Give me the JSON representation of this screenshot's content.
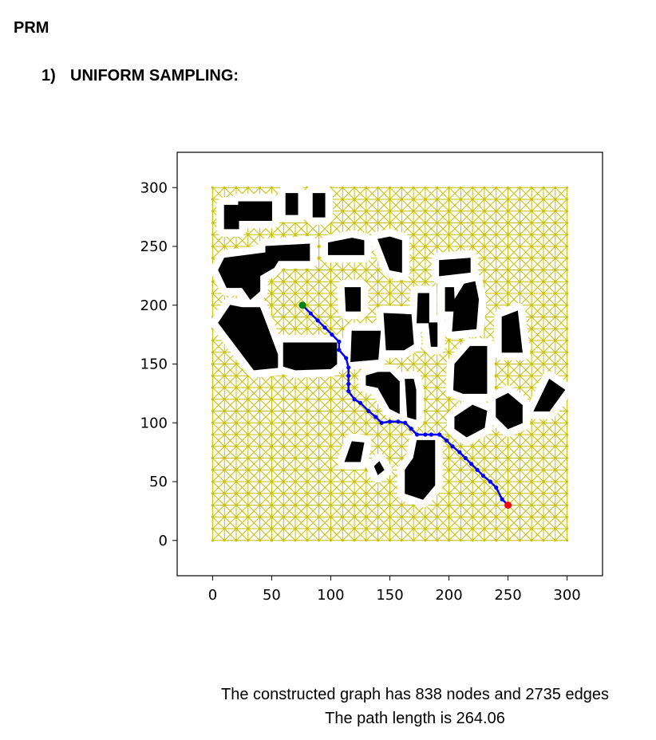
{
  "heading": "PRM",
  "section": {
    "number": "1)",
    "title": "UNIFORM SAMPLING:"
  },
  "chart_data": {
    "type": "scatter",
    "title": "",
    "xlabel": "",
    "ylabel": "",
    "xlim": [
      -30,
      330
    ],
    "ylim": [
      330,
      -30
    ],
    "y_inverted": true,
    "grid": false,
    "xticks": [
      0,
      50,
      100,
      150,
      200,
      250,
      300
    ],
    "yticks": [
      0,
      50,
      100,
      150,
      200,
      250,
      300
    ],
    "sample_grid": {
      "extent": [
        0,
        300
      ],
      "step": 10,
      "color": "#c8c000"
    },
    "start": {
      "x": 76,
      "y": 200,
      "color": "#008000"
    },
    "goal": {
      "x": 250,
      "y": 30,
      "color": "#ff0000"
    },
    "path": {
      "color": "#0000ff",
      "points": [
        [
          76,
          200
        ],
        [
          83,
          193
        ],
        [
          89,
          187
        ],
        [
          95,
          181
        ],
        [
          101,
          175
        ],
        [
          107,
          169
        ],
        [
          107,
          162
        ],
        [
          113,
          155
        ],
        [
          115,
          147
        ],
        [
          115,
          140
        ],
        [
          115,
          133
        ],
        [
          115,
          127
        ],
        [
          120,
          120
        ],
        [
          125,
          117
        ],
        [
          132,
          110
        ],
        [
          138,
          105
        ],
        [
          143,
          100
        ],
        [
          150,
          101
        ],
        [
          157,
          101
        ],
        [
          163,
          100
        ],
        [
          168,
          95
        ],
        [
          173,
          90
        ],
        [
          180,
          90
        ],
        [
          185,
          90
        ],
        [
          192,
          90
        ],
        [
          198,
          85
        ],
        [
          203,
          80
        ],
        [
          209,
          75
        ],
        [
          214,
          70
        ],
        [
          219,
          65
        ],
        [
          224,
          60
        ],
        [
          229,
          55
        ],
        [
          235,
          50
        ],
        [
          240,
          45
        ],
        [
          245,
          35
        ],
        [
          250,
          30
        ]
      ]
    },
    "obstacles": {
      "color": "#000000",
      "clearance_color": "#ffffff",
      "polygons": [
        [
          [
            5,
            185
          ],
          [
            35,
            145
          ],
          [
            55,
            147
          ],
          [
            55,
            158
          ],
          [
            45,
            185
          ],
          [
            40,
            198
          ],
          [
            25,
            198
          ],
          [
            15,
            200
          ]
        ],
        [
          [
            60,
            148
          ],
          [
            70,
            145
          ],
          [
            100,
            146
          ],
          [
            105,
            150
          ],
          [
            105,
            168
          ],
          [
            95,
            168
          ],
          [
            60,
            168
          ]
        ],
        [
          [
            117,
            152
          ],
          [
            140,
            154
          ],
          [
            142,
            178
          ],
          [
            118,
            178
          ]
        ],
        [
          [
            130,
            132
          ],
          [
            140,
            130
          ],
          [
            150,
            112
          ],
          [
            158,
            108
          ],
          [
            158,
            135
          ],
          [
            150,
            143
          ],
          [
            140,
            143
          ],
          [
            130,
            140
          ]
        ],
        [
          [
            165,
            105
          ],
          [
            172,
            103
          ],
          [
            172,
            128
          ],
          [
            170,
            137
          ],
          [
            163,
            137
          ]
        ],
        [
          [
            163,
            40
          ],
          [
            178,
            35
          ],
          [
            188,
            47
          ],
          [
            188,
            85
          ],
          [
            173,
            85
          ],
          [
            170,
            70
          ],
          [
            163,
            60
          ]
        ],
        [
          [
            112,
            67
          ],
          [
            125,
            67
          ],
          [
            128,
            83
          ],
          [
            118,
            84
          ]
        ],
        [
          [
            140,
            56
          ],
          [
            145,
            60
          ],
          [
            141,
            67
          ],
          [
            137,
            63
          ]
        ],
        [
          [
            205,
            95
          ],
          [
            215,
            88
          ],
          [
            230,
            96
          ],
          [
            232,
            110
          ],
          [
            220,
            115
          ],
          [
            205,
            105
          ]
        ],
        [
          [
            240,
            105
          ],
          [
            250,
            95
          ],
          [
            262,
            100
          ],
          [
            262,
            115
          ],
          [
            250,
            125
          ],
          [
            240,
            120
          ]
        ],
        [
          [
            272,
            110
          ],
          [
            285,
            110
          ],
          [
            298,
            128
          ],
          [
            285,
            137
          ]
        ],
        [
          [
            204,
            128
          ],
          [
            212,
            125
          ],
          [
            232,
            125
          ],
          [
            232,
            165
          ],
          [
            218,
            165
          ],
          [
            205,
            150
          ]
        ],
        [
          [
            245,
            160
          ],
          [
            262,
            160
          ],
          [
            258,
            195
          ],
          [
            245,
            190
          ]
        ],
        [
          [
            147,
            162
          ],
          [
            162,
            162
          ],
          [
            170,
            167
          ],
          [
            168,
            192
          ],
          [
            145,
            193
          ]
        ],
        [
          [
            185,
            165
          ],
          [
            190,
            165
          ],
          [
            190,
            185
          ],
          [
            183,
            185
          ]
        ],
        [
          [
            173,
            185
          ],
          [
            183,
            185
          ],
          [
            183,
            210
          ],
          [
            174,
            210
          ]
        ],
        [
          [
            203,
            178
          ],
          [
            223,
            180
          ],
          [
            225,
            205
          ],
          [
            222,
            220
          ],
          [
            213,
            218
          ],
          [
            205,
            205
          ]
        ],
        [
          [
            197,
            195
          ],
          [
            205,
            195
          ],
          [
            204,
            215
          ],
          [
            197,
            215
          ]
        ],
        [
          [
            192,
            225
          ],
          [
            218,
            228
          ],
          [
            218,
            240
          ],
          [
            192,
            238
          ]
        ],
        [
          [
            113,
            195
          ],
          [
            125,
            195
          ],
          [
            125,
            215
          ],
          [
            112,
            215
          ]
        ],
        [
          [
            150,
            230
          ],
          [
            160,
            228
          ],
          [
            160,
            255
          ],
          [
            150,
            258
          ],
          [
            140,
            256
          ],
          [
            145,
            243
          ]
        ],
        [
          [
            98,
            243
          ],
          [
            128,
            243
          ],
          [
            128,
            255
          ],
          [
            118,
            257
          ],
          [
            98,
            253
          ]
        ],
        [
          [
            5,
            230
          ],
          [
            12,
            215
          ],
          [
            25,
            215
          ],
          [
            32,
            205
          ],
          [
            40,
            212
          ],
          [
            40,
            225
          ],
          [
            52,
            232
          ],
          [
            58,
            242
          ],
          [
            48,
            245
          ],
          [
            10,
            240
          ]
        ],
        [
          [
            45,
            238
          ],
          [
            82,
            238
          ],
          [
            82,
            252
          ],
          [
            45,
            250
          ]
        ],
        [
          [
            10,
            265
          ],
          [
            22,
            265
          ],
          [
            22,
            285
          ],
          [
            10,
            285
          ]
        ],
        [
          [
            22,
            272
          ],
          [
            50,
            272
          ],
          [
            50,
            288
          ],
          [
            22,
            288
          ]
        ],
        [
          [
            62,
            277
          ],
          [
            72,
            277
          ],
          [
            72,
            295
          ],
          [
            62,
            295
          ]
        ],
        [
          [
            85,
            275
          ],
          [
            95,
            275
          ],
          [
            95,
            295
          ],
          [
            85,
            295
          ]
        ]
      ]
    }
  },
  "summary": {
    "line1": "The constructed graph has 838 nodes and 2735 edges",
    "line2": "The path length is 264.06"
  }
}
